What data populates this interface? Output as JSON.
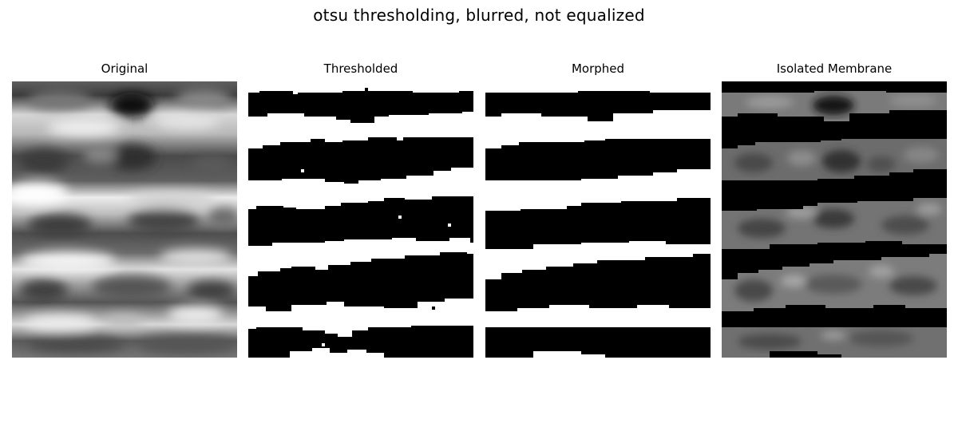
{
  "figure": {
    "title": "otsu thresholding, blurred, not equalized"
  },
  "panels": [
    {
      "title": "Original",
      "kind": "grayscale"
    },
    {
      "title": "Thresholded",
      "kind": "binary-noisy"
    },
    {
      "title": "Morphed",
      "kind": "binary-clean"
    },
    {
      "title": "Isolated Membrane",
      "kind": "masked-grayscale"
    }
  ]
}
